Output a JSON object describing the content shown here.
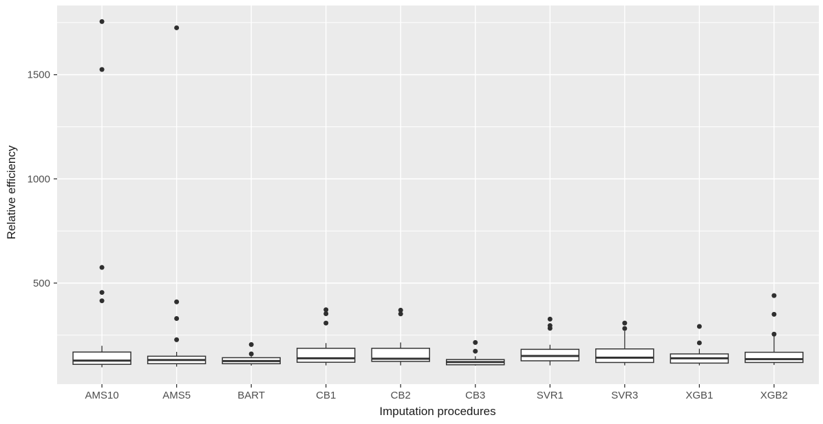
{
  "figure": {
    "background": "#ffffff",
    "panel_background": "#ebebeb",
    "grid_color": "#ffffff",
    "box_fill": "#ffffff",
    "box_stroke": "#333333",
    "outlier_color": "#2f2f2f",
    "tick_label_color": "#4d4d4d",
    "axis_title_color": "#1a1a1a"
  },
  "chart_data": {
    "type": "boxplot",
    "title": "",
    "xlabel": "Imputation procedures",
    "ylabel": "Relative efficiency",
    "grid": true,
    "legend": "none",
    "ylim": [
      15,
      1832
    ],
    "y_ticks": [
      {
        "value": 500,
        "label": "500"
      },
      {
        "value": 1000,
        "label": "1000"
      },
      {
        "value": 1500,
        "label": "1500"
      }
    ],
    "y_minor_ticks": [
      250,
      750,
      1250,
      1750
    ],
    "categories": [
      "AMS10",
      "AMS5",
      "BART",
      "CB1",
      "CB2",
      "CB3",
      "SVR1",
      "SVR3",
      "XGB1",
      "XGB2"
    ],
    "boxes": [
      {
        "category": "AMS10",
        "q1": 110,
        "median": 128,
        "q3": 169,
        "whisker_low": 96,
        "whisker_high": 199,
        "outliers": [
          415,
          455,
          575,
          1525,
          1755
        ]
      },
      {
        "category": "AMS5",
        "q1": 113,
        "median": 131,
        "q3": 149,
        "whisker_low": 99,
        "whisker_high": 170,
        "outliers": [
          228,
          330,
          410,
          1725
        ]
      },
      {
        "category": "BART",
        "q1": 113,
        "median": 126,
        "q3": 142,
        "whisker_low": 104,
        "whisker_high": 148,
        "outliers": [
          160,
          205
        ]
      },
      {
        "category": "CB1",
        "q1": 120,
        "median": 139,
        "q3": 187,
        "whisker_low": 105,
        "whisker_high": 212,
        "outliers": [
          308,
          353,
          372
        ]
      },
      {
        "category": "CB2",
        "q1": 124,
        "median": 137,
        "q3": 187,
        "whisker_low": 105,
        "whisker_high": 215,
        "outliers": [
          352,
          370
        ]
      },
      {
        "category": "CB3",
        "q1": 108,
        "median": 121,
        "q3": 133,
        "whisker_low": 104,
        "whisker_high": 149,
        "outliers": [
          173,
          215
        ]
      },
      {
        "category": "SVR1",
        "q1": 127,
        "median": 150,
        "q3": 182,
        "whisker_low": 105,
        "whisker_high": 204,
        "outliers": [
          283,
          296,
          327
        ]
      },
      {
        "category": "SVR3",
        "q1": 119,
        "median": 142,
        "q3": 184,
        "whisker_low": 105,
        "whisker_high": 270,
        "outliers": [
          282,
          308
        ]
      },
      {
        "category": "XGB1",
        "q1": 116,
        "median": 139,
        "q3": 160,
        "whisker_low": 105,
        "whisker_high": 185,
        "outliers": [
          213,
          292
        ]
      },
      {
        "category": "XGB2",
        "q1": 119,
        "median": 135,
        "q3": 168,
        "whisker_low": 107,
        "whisker_high": 253,
        "outliers": [
          255,
          350,
          440
        ]
      }
    ]
  }
}
